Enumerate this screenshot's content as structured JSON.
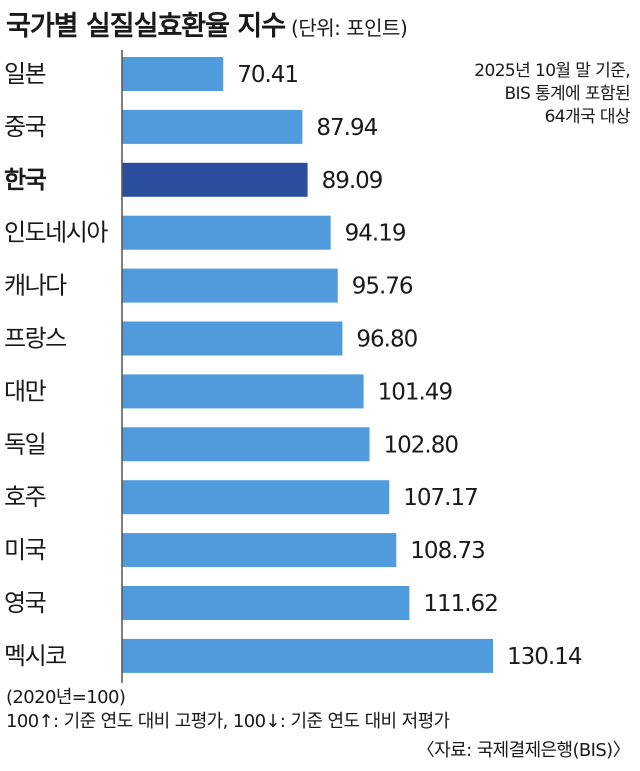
{
  "header": {
    "title": "국가별 실질실효환율 지수",
    "unit": "(단위: 포인트)"
  },
  "note": {
    "lines": [
      "2025년 10월 말 기준,",
      "BIS 통계에 포함된",
      "64개국 대상"
    ]
  },
  "chart_data": {
    "type": "bar",
    "orientation": "horizontal",
    "categories": [
      "일본",
      "중국",
      "한국",
      "인도네시아",
      "캐나다",
      "프랑스",
      "대만",
      "독일",
      "호주",
      "미국",
      "영국",
      "멕시코"
    ],
    "values": [
      70.41,
      87.94,
      89.09,
      94.19,
      95.76,
      96.8,
      101.49,
      102.8,
      107.17,
      108.73,
      111.62,
      130.14
    ],
    "value_labels": [
      "70.41",
      "87.94",
      "89.09",
      "94.19",
      "95.76",
      "96.80",
      "101.49",
      "102.80",
      "107.17",
      "108.73",
      "111.62",
      "130.14"
    ],
    "highlight": "한국",
    "bar_color": "#4f9bdb",
    "highlight_color": "#2b4f9e",
    "xlim": [
      48,
      130.14
    ],
    "grid": false
  },
  "footer": {
    "base": "(2020년=100)",
    "legend": "100↑: 기준 연도 대비 고평가, 100↓: 기준 연도 대비 저평가",
    "source": "〈자료: 국제결제은행(BIS)〉"
  }
}
